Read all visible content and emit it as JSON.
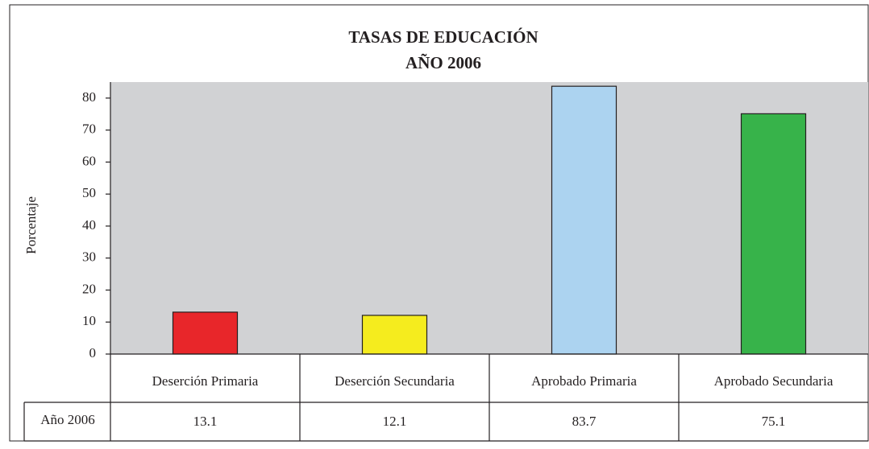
{
  "chart_data": {
    "type": "bar",
    "title": "TASAS DE EDUCACIÓN",
    "subtitle": "AÑO 2006",
    "y_label": "Porcentaje",
    "categories": [
      "Deserción Primaria",
      "Deserción Secundaria",
      "Aprobado Primaria",
      "Aprobado Secundaria"
    ],
    "series": [
      {
        "name": "Año 2006",
        "values": [
          13.1,
          12.1,
          83.7,
          75.1
        ]
      }
    ],
    "colors": [
      "#e8262a",
      "#f5ec1e",
      "#acd3f0",
      "#37b34a"
    ],
    "plot_background": "#d1d2d4",
    "ylim": [
      0,
      85
    ],
    "yticks": [
      0,
      10,
      20,
      30,
      40,
      50,
      60,
      70,
      80
    ]
  }
}
